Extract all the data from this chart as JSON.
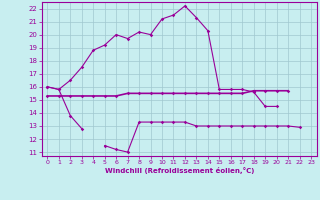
{
  "xlabel": "Windchill (Refroidissement éolien,°C)",
  "bg_color": "#c8eef0",
  "grid_color": "#a0c8d0",
  "line_color": "#990099",
  "x_values": [
    0,
    1,
    2,
    3,
    4,
    5,
    6,
    7,
    8,
    9,
    10,
    11,
    12,
    13,
    14,
    15,
    16,
    17,
    18,
    19,
    20,
    21,
    22,
    23
  ],
  "temp_line": [
    16.0,
    15.8,
    16.5,
    17.5,
    18.8,
    19.2,
    20.0,
    19.7,
    20.2,
    20.0,
    21.2,
    21.5,
    22.2,
    21.3,
    20.3,
    15.8,
    15.8,
    15.8,
    15.6,
    14.5,
    14.5,
    null,
    null,
    null
  ],
  "mid_line": [
    15.3,
    15.3,
    15.3,
    15.3,
    15.3,
    15.3,
    15.3,
    15.5,
    15.5,
    15.5,
    15.5,
    15.5,
    15.5,
    15.5,
    15.5,
    15.5,
    15.5,
    15.5,
    15.7,
    15.7,
    15.7,
    15.7,
    null,
    null
  ],
  "wc_line": [
    16.0,
    15.8,
    13.8,
    12.8,
    null,
    11.5,
    11.2,
    11.0,
    13.3,
    13.3,
    13.3,
    13.3,
    13.3,
    13.0,
    13.0,
    13.0,
    13.0,
    13.0,
    13.0,
    13.0,
    13.0,
    13.0,
    12.9,
    null
  ],
  "ylim": [
    10.7,
    22.5
  ],
  "xlim": [
    -0.5,
    23.5
  ],
  "yticks": [
    11,
    12,
    13,
    14,
    15,
    16,
    17,
    18,
    19,
    20,
    21,
    22
  ],
  "xticks": [
    0,
    1,
    2,
    3,
    4,
    5,
    6,
    7,
    8,
    9,
    10,
    11,
    12,
    13,
    14,
    15,
    16,
    17,
    18,
    19,
    20,
    21,
    22,
    23
  ]
}
